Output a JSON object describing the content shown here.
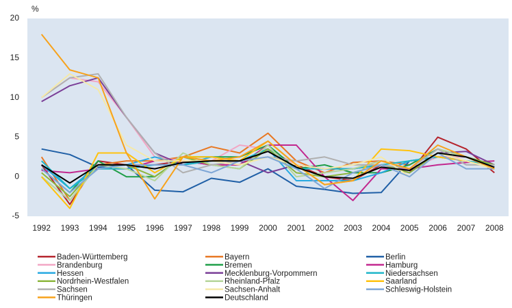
{
  "chart_data": {
    "type": "line",
    "y_label": "%",
    "categories": [
      "1992",
      "1993",
      "1994",
      "1995",
      "1996",
      "1997",
      "1998",
      "1999",
      "2000",
      "2001",
      "2002",
      "2003",
      "2004",
      "2005",
      "2006",
      "2007",
      "2008"
    ],
    "ylim": [
      -5,
      20
    ],
    "yticks": [
      -5,
      0,
      5,
      10,
      15,
      20
    ],
    "grid": false,
    "legend": "bottom",
    "background": "#dbe5f1",
    "series": [
      {
        "name": "Baden-Württemberg",
        "color": "#b5232c",
        "values": [
          1.5,
          -3.5,
          2,
          1.5,
          1.5,
          2,
          1.5,
          1.5,
          3.5,
          1.5,
          0,
          -0.5,
          1.5,
          0.5,
          5,
          3.5,
          0.5
        ]
      },
      {
        "name": "Bayern",
        "color": "#e87722",
        "values": [
          2.5,
          -3,
          1.5,
          2,
          2,
          2.5,
          3.8,
          3,
          5.5,
          2,
          0.5,
          1.8,
          2,
          1.5,
          3.5,
          2.5,
          1.5
        ]
      },
      {
        "name": "Berlin",
        "color": "#1f5fa6",
        "values": [
          3.5,
          2.8,
          1.2,
          1.5,
          -1.7,
          -1.9,
          -0.2,
          -0.7,
          1,
          -1.2,
          -1.6,
          -2.1,
          -2,
          2,
          2.5,
          2.5,
          1.5
        ]
      },
      {
        "name": "Brandenburg",
        "color": "#f2a6c4",
        "values": [
          10,
          12.5,
          12,
          7.5,
          2.5,
          2,
          2,
          4,
          3.5,
          1.5,
          1,
          1,
          2,
          1,
          2.5,
          2.5,
          1.5
        ]
      },
      {
        "name": "Bremen",
        "color": "#1e9e48",
        "values": [
          1,
          -2,
          2,
          0,
          0,
          2.5,
          2.5,
          2.5,
          4,
          1,
          1.5,
          0.5,
          0.5,
          1.5,
          3.5,
          2.5,
          1.5
        ]
      },
      {
        "name": "Hamburg",
        "color": "#c2278e",
        "values": [
          0.8,
          0.5,
          1,
          1,
          2,
          2,
          1.5,
          1.5,
          4,
          4,
          0,
          -3,
          1,
          1,
          1.5,
          1.8,
          2
        ]
      },
      {
        "name": "Hessen",
        "color": "#27a9e1",
        "values": [
          1.5,
          -1.5,
          1.5,
          1.5,
          2.5,
          1.5,
          2.5,
          2,
          3.5,
          -0.5,
          -0.5,
          -0.5,
          0.5,
          2,
          2.5,
          2,
          1.5
        ]
      },
      {
        "name": "Mecklenburg-Vorpommern",
        "color": "#7a3e97",
        "values": [
          9.5,
          11.5,
          12.5,
          7.5,
          3,
          1.5,
          2,
          2,
          0.5,
          1.5,
          1,
          1,
          1.5,
          0.5,
          3,
          3.2,
          1.5
        ]
      },
      {
        "name": "Niedersachsen",
        "color": "#1fb6c9",
        "values": [
          2,
          -1.5,
          1,
          1,
          1.5,
          1.5,
          2,
          2,
          3.5,
          1,
          1,
          1,
          1.5,
          2,
          2.5,
          2,
          1.5
        ]
      },
      {
        "name": "Nordrhein-Westfalen",
        "color": "#8cb63c",
        "values": [
          0.5,
          -2.5,
          1.5,
          1.5,
          0,
          2.5,
          1.5,
          1,
          3.5,
          0.5,
          0,
          0.5,
          1.5,
          0.5,
          3,
          2.5,
          1.5
        ]
      },
      {
        "name": "Rheinland-Pfalz",
        "color": "#b5d59a",
        "values": [
          0,
          -3,
          1.5,
          1,
          -0.5,
          3,
          1.5,
          1,
          4,
          0,
          0.5,
          1,
          2,
          1,
          3.5,
          2.5,
          1
        ]
      },
      {
        "name": "Saarland",
        "color": "#ffc20e",
        "values": [
          0,
          -4,
          3,
          3,
          0.5,
          2.5,
          2.5,
          2,
          4.5,
          1.5,
          -1,
          -0.5,
          3.5,
          3.3,
          2.5,
          2,
          1
        ]
      },
      {
        "name": "Sachsen",
        "color": "#b0b0b0",
        "values": [
          10,
          12.5,
          13,
          7.5,
          3,
          0.5,
          1.5,
          2,
          2.5,
          2,
          2.5,
          1.5,
          1.5,
          1,
          3.5,
          1.5,
          1.5
        ]
      },
      {
        "name": "Sachsen-Anhalt",
        "color": "#f5e9a8",
        "values": [
          10,
          13,
          11,
          4,
          2,
          2,
          2,
          1.5,
          2.5,
          1.5,
          1,
          1.5,
          2.5,
          0,
          3,
          2,
          1
        ]
      },
      {
        "name": "Schleswig-Holstein",
        "color": "#7ea6d6",
        "values": [
          1,
          -2,
          1,
          1.5,
          1.5,
          1.5,
          0.5,
          2,
          2.5,
          1,
          -1.5,
          0.5,
          1.5,
          0,
          3,
          1,
          1
        ]
      },
      {
        "name": "Thüringen",
        "color": "#f7a21b",
        "values": [
          18,
          13.5,
          12.5,
          3,
          -2.8,
          2.5,
          2,
          2.5,
          4.5,
          1.5,
          -1,
          -0.5,
          2,
          1,
          4,
          2.5,
          1
        ]
      },
      {
        "name": "Deutschland",
        "color": "#000000",
        "values": [
          1.5,
          -0.8,
          1.5,
          1.5,
          1,
          1.8,
          2,
          2,
          3.2,
          1.2,
          0,
          -0.2,
          1.2,
          0.8,
          3,
          2.5,
          1.2
        ]
      }
    ]
  }
}
